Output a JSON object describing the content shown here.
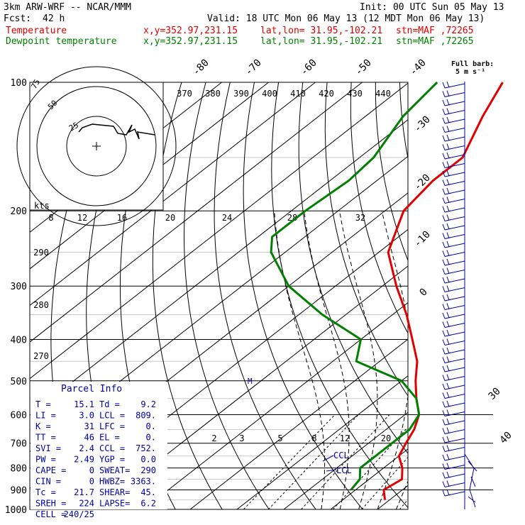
{
  "header": {
    "model": "3km ARW-WRF -- NCAR/MMM",
    "init": "Init: 00 UTC Sun 05 May 13",
    "fcst_label": "Fcst:",
    "fcst_value": "42 h",
    "valid": "Valid: 18 UTC Mon 06 May 13 (12 MDT Mon 06 May 13)",
    "temp_label": "Temperature",
    "dew_label": "Dewpoint temperature",
    "xy": "x,y=352.97,231.15",
    "latlon": "lat,lon= 31.95,-102.21",
    "stn": "stn=MAF ,72265",
    "temp_color": "#e00000",
    "dew_color": "#008000"
  },
  "barb_key": {
    "line1": "Full barb:",
    "line2": "5 m s⁻¹"
  },
  "parcel": {
    "title": "Parcel Info",
    "rows": [
      [
        "T  =",
        "15.1",
        "Td =",
        "9.2"
      ],
      [
        "LI =",
        "3.0",
        "LCL =",
        "809."
      ],
      [
        "K  =",
        "31",
        "LFC =",
        "0."
      ],
      [
        "TT =",
        "46",
        "EL =",
        "0."
      ],
      [
        "SVI =",
        "2.4",
        "CCL =",
        "752."
      ],
      [
        "PW =",
        "2.49",
        "YGP =",
        "0.0"
      ],
      [
        "CAPE =",
        "0",
        "SWEAT=",
        "290"
      ],
      [
        "CIN =",
        "0",
        "HWBZ=",
        "3363."
      ],
      [
        "Tc =",
        "21.7",
        "SHEAR=",
        "45."
      ],
      [
        "SREH =",
        "224",
        "LAPSE=",
        "6.2"
      ],
      [
        "CELL =",
        "240/25",
        "",
        ""
      ]
    ]
  },
  "chart_data": {
    "type": "line",
    "title": "Skew-T log-P diagram",
    "y_axis": {
      "label": "",
      "scale": "log",
      "range": [
        1000,
        100
      ],
      "ticks": [
        100,
        200,
        300,
        400,
        500,
        600,
        700,
        800,
        900,
        1000
      ]
    },
    "isotherm_labels": [
      "-80",
      "-70",
      "-60",
      "-50",
      "-40",
      "-30",
      "-20",
      "-10",
      "0",
      "30",
      "40"
    ],
    "theta_labels_top": [
      "370",
      "380",
      "390",
      "400",
      "410",
      "420",
      "430",
      "440"
    ],
    "theta_labels_left": [
      "290",
      "280",
      "270"
    ],
    "mixing_ratio_labels": [
      "2",
      "3",
      "5",
      "8",
      "12",
      "20"
    ],
    "inset_speed_labels": [
      "8",
      "12",
      "16",
      "20",
      "24",
      "28",
      "32"
    ],
    "inset_ring_labels": [
      "75",
      "50",
      "25"
    ],
    "inset_units": "kts",
    "annotations": [
      "CCL",
      "LCL",
      "M"
    ],
    "series": [
      {
        "name": "Temperature",
        "color": "#e00000",
        "points": [
          [
            100,
            -70
          ],
          [
            120,
            -65
          ],
          [
            150,
            -58
          ],
          [
            170,
            -58
          ],
          [
            200,
            -56
          ],
          [
            230,
            -51
          ],
          [
            250,
            -48
          ],
          [
            300,
            -37
          ],
          [
            350,
            -27
          ],
          [
            400,
            -19
          ],
          [
            450,
            -12
          ],
          [
            500,
            -7
          ],
          [
            550,
            -2
          ],
          [
            600,
            3
          ],
          [
            650,
            6
          ],
          [
            700,
            8
          ],
          [
            750,
            10
          ],
          [
            800,
            14
          ],
          [
            850,
            17
          ],
          [
            900,
            16
          ],
          [
            950,
            19
          ]
        ]
      },
      {
        "name": "Dewpoint temperature",
        "color": "#008000",
        "points": [
          [
            100,
            -84
          ],
          [
            120,
            -82
          ],
          [
            150,
            -77
          ],
          [
            170,
            -76
          ],
          [
            200,
            -77
          ],
          [
            230,
            -77
          ],
          [
            250,
            -73
          ],
          [
            300,
            -60
          ],
          [
            350,
            -45
          ],
          [
            400,
            -30
          ],
          [
            450,
            -25
          ],
          [
            500,
            -10
          ],
          [
            550,
            -2
          ],
          [
            600,
            3
          ],
          [
            650,
            5
          ],
          [
            700,
            5
          ],
          [
            750,
            5
          ],
          [
            800,
            5
          ],
          [
            850,
            8
          ],
          [
            900,
            9
          ]
        ]
      }
    ]
  }
}
